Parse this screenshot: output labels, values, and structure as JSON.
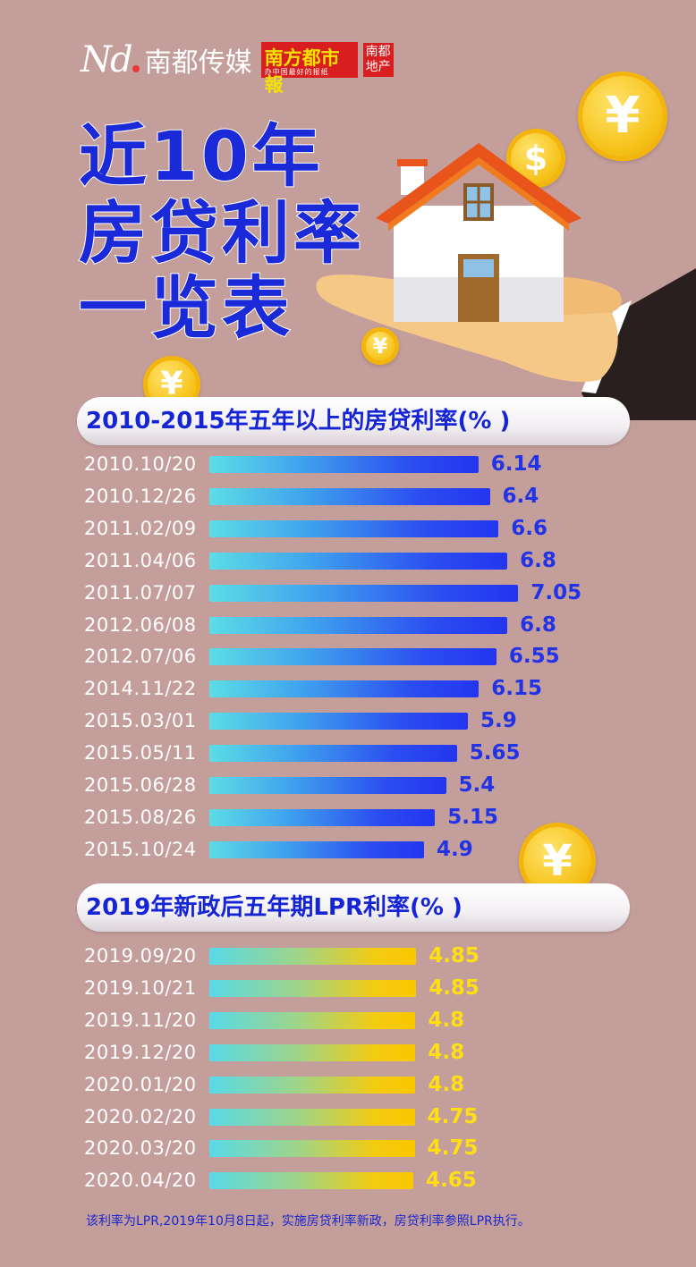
{
  "brand": {
    "nd": "Nd",
    "name": "南都传媒",
    "paper": "南方都市報",
    "paper_sub": "办中国最好的报纸",
    "estate_line1": "南都",
    "estate_line2": "地产"
  },
  "headline": [
    "近10年",
    "房贷利率",
    "一览表"
  ],
  "icons": {
    "coin": "yen-coin-icon",
    "dollar": "dollar-coin-icon",
    "house": "house-on-hand-icon"
  },
  "colors": {
    "background": "#c49e9b",
    "title_blue": "#1b2ad8",
    "value_yellow": "#ffdf14",
    "brand_red": "#d81e1e"
  },
  "chart_data": [
    {
      "type": "bar",
      "orientation": "horizontal",
      "title": "2010-2015年五年以上的房贷利率(% )",
      "categories": [
        "2010.10/20",
        "2010.12/26",
        "2011.02/09",
        "2011.04/06",
        "2011.07/07",
        "2012.06/08",
        "2012.07/06",
        "2014.11/22",
        "2015.03/01",
        "2015.05/11",
        "2015.06/28",
        "2015.08/26",
        "2015.10/24"
      ],
      "values": [
        6.14,
        6.4,
        6.6,
        6.8,
        7.05,
        6.8,
        6.55,
        6.15,
        5.9,
        5.65,
        5.4,
        5.15,
        4.9
      ],
      "value_labels": [
        "6.14",
        "6.4",
        "6.6",
        "6.8",
        "7.05",
        "6.8",
        "6.55",
        "6.15",
        "5.9",
        "5.65",
        "5.4",
        "5.15",
        "4.9"
      ],
      "bar_color": "blue-gradient"
    },
    {
      "type": "bar",
      "orientation": "horizontal",
      "title": "2019年新政后五年期LPR利率(% )",
      "categories": [
        "2019.09/20",
        "2019.10/21",
        "2019.11/20",
        "2019.12/20",
        "2020.01/20",
        "2020.02/20",
        "2020.03/20",
        "2020.04/20"
      ],
      "values": [
        4.85,
        4.85,
        4.8,
        4.8,
        4.8,
        4.75,
        4.75,
        4.65
      ],
      "value_labels": [
        "4.85",
        "4.85",
        "4.8",
        "4.8",
        "4.8",
        "4.75",
        "4.75",
        "4.65"
      ],
      "bar_color": "cyan-gold-gradient"
    }
  ],
  "footnote": "该利率为LPR,2019年10月8日起，实施房贷利率新政，房贷利率参照LPR执行。"
}
